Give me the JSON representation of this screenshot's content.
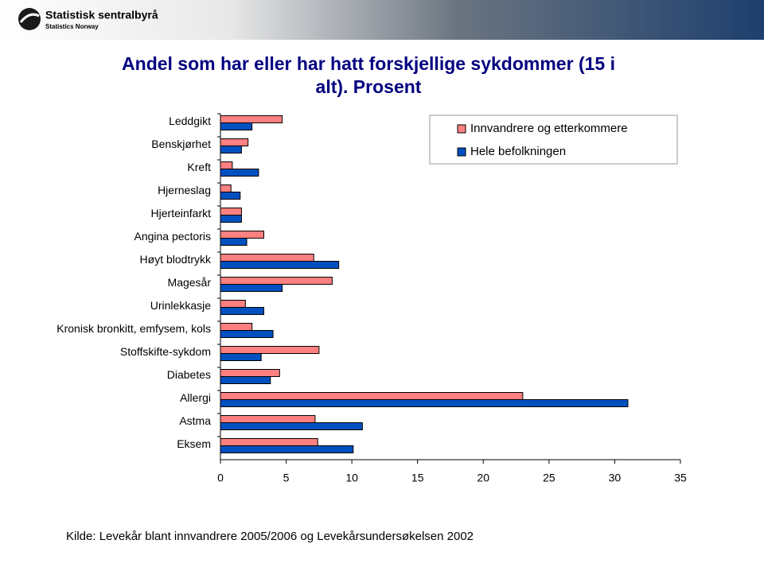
{
  "header": {
    "name": "Statistisk sentralbyrå",
    "sub": "Statistics Norway"
  },
  "chart_data": {
    "type": "hbar",
    "title": "Andel som har eller har hatt forskjellige sykdommer (15 i alt). Prosent",
    "categories": [
      "Leddgikt",
      "Benskjørhet",
      "Kreft",
      "Hjerneslag",
      "Hjerteinfarkt",
      "Angina pectoris",
      "Høyt blodtrykk",
      "Magesår",
      "Urinlekkasje",
      "Kronisk bronkitt, emfysem, kols",
      "Stoffskifte-sykdom",
      "Diabetes",
      "Allergi",
      "Astma",
      "Eksem"
    ],
    "series": [
      {
        "name": "Innvandrere og etterkommere",
        "color": "#ff8080",
        "values": [
          4.7,
          2.1,
          0.9,
          0.8,
          1.6,
          3.3,
          7.1,
          8.5,
          1.9,
          2.4,
          7.5,
          4.5,
          23.0,
          7.2,
          7.4
        ]
      },
      {
        "name": "Hele befolkningen",
        "color": "#0050c0",
        "values": [
          2.4,
          1.6,
          2.9,
          1.5,
          1.6,
          2.0,
          9.0,
          4.7,
          3.3,
          4.0,
          3.1,
          3.8,
          31.0,
          10.8,
          10.1
        ]
      }
    ],
    "xlim": [
      0,
      35
    ],
    "xticks": [
      0,
      5,
      10,
      15,
      20,
      25,
      30,
      35
    ],
    "legend": "top-right",
    "source": "Kilde: Levekår blant innvandrere 2005/2006 og Levekårsundersøkelsen 2002"
  }
}
